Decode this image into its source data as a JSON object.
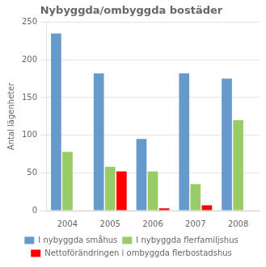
{
  "chart_data": {
    "type": "bar",
    "title": "Nybyggda/ombyggda bostäder",
    "ylabel": "Antal lägenheter",
    "categories": [
      "2004",
      "2005",
      "2006",
      "2007",
      "2008"
    ],
    "series": [
      {
        "name": "I nybyggda småhus",
        "color": "#6699CC",
        "values": [
          235,
          182,
          95,
          182,
          175
        ]
      },
      {
        "name": "I nybyggda flerfamiljshus",
        "color": "#99CC66",
        "values": [
          78,
          58,
          52,
          35,
          120
        ]
      },
      {
        "name": "Nettoförändringen i ombyggda flerbostadshus",
        "color": "#FF0000",
        "values": [
          0,
          52,
          3,
          7,
          0
        ]
      }
    ],
    "ylim": [
      0,
      250
    ],
    "yticks": [
      0,
      50,
      100,
      150,
      200,
      250
    ],
    "grid": true,
    "legend": "bottom"
  }
}
